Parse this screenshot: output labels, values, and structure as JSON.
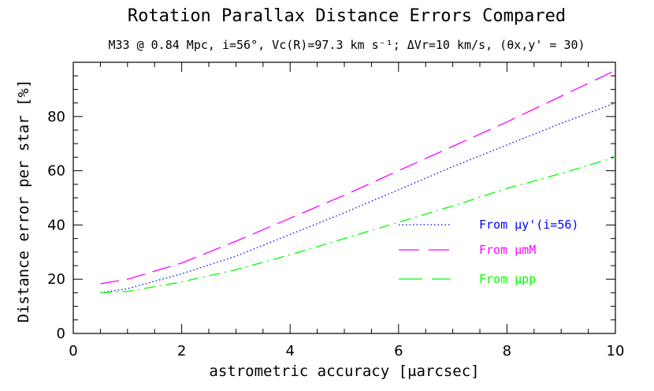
{
  "chart_data": {
    "type": "line",
    "title": "Rotation Parallax Distance Errors Compared",
    "subtitle": "M33 @ 0.84 Mpc,  i=56°,  Vc(R)=97.3 km s⁻¹; ΔVr=10 km/s,   (θx,y' = 30)",
    "xlabel": "astrometric accuracy [μarcsec]",
    "ylabel": "Distance error per star [%]",
    "xlim": [
      0,
      10
    ],
    "ylim": [
      0,
      100
    ],
    "xticks": [
      "0",
      "2",
      "4",
      "6",
      "8",
      "10"
    ],
    "yticks": [
      "0",
      "20",
      "40",
      "60",
      "80"
    ],
    "grid": false,
    "legend_position": "lower-right",
    "series": [
      {
        "name": "From μy'(i=56)",
        "color": "#0000ff",
        "style": "dotted",
        "x": [
          0.5,
          1,
          2,
          3,
          4,
          5,
          6,
          7,
          8,
          9,
          10
        ],
        "y": [
          15.0,
          16.5,
          22.0,
          28.5,
          36.5,
          44.5,
          53.0,
          61.5,
          69.5,
          77.5,
          85.0
        ]
      },
      {
        "name": "From μmM",
        "color": "#ff00ff",
        "style": "long-dash",
        "x": [
          0.5,
          1,
          2,
          3,
          4,
          5,
          6,
          7,
          8,
          9,
          10
        ],
        "y": [
          18.3,
          20.0,
          26.0,
          34.0,
          42.5,
          51.0,
          60.0,
          69.0,
          78.0,
          87.5,
          97.0
        ]
      },
      {
        "name": "From μpp",
        "color": "#00ff00",
        "style": "dash-dot",
        "x": [
          0.5,
          1,
          2,
          3,
          4,
          5,
          6,
          7,
          8,
          9,
          10
        ],
        "y": [
          15.0,
          15.5,
          19.0,
          23.5,
          29.0,
          35.0,
          41.0,
          47.0,
          53.5,
          59.0,
          65.0
        ]
      }
    ]
  }
}
